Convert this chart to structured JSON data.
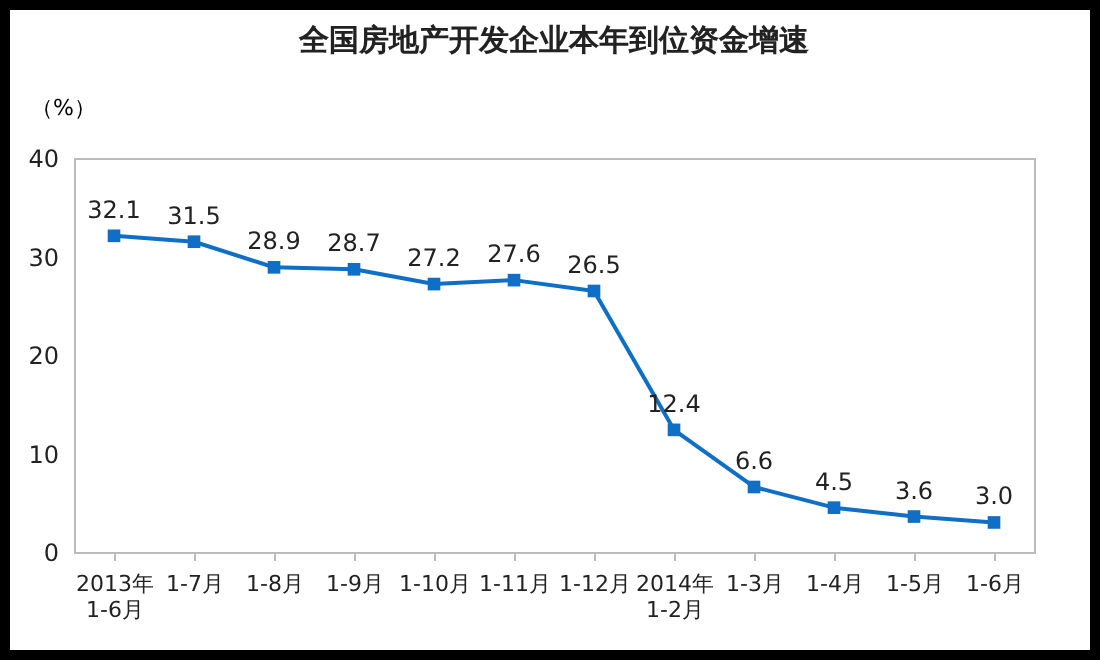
{
  "chart_data": {
    "type": "line",
    "title": "全国房地产开发企业本年到位资金增速",
    "ylabel": "（%）",
    "categories": [
      "2013年\n1-6月",
      "1-7月",
      "1-8月",
      "1-9月",
      "1-10月",
      "1-11月",
      "1-12月",
      "2014年\n1-2月",
      "1-3月",
      "1-4月",
      "1-5月",
      "1-6月"
    ],
    "series": [
      {
        "color": "#0f6fc6",
        "values": [
          32.1,
          31.5,
          28.9,
          28.7,
          27.2,
          27.6,
          26.5,
          12.4,
          6.6,
          4.5,
          3.6,
          3.0
        ]
      }
    ],
    "value_labels": [
      "32.1",
      "31.5",
      "28.9",
      "28.7",
      "27.2",
      "27.6",
      "26.5",
      "12.4",
      "6.6",
      "4.5",
      "3.6",
      "3.0"
    ],
    "ylim": [
      0,
      40
    ],
    "yticks": [
      0,
      10,
      20,
      30,
      40
    ],
    "marker": "square",
    "line_style": "solid",
    "grid": false
  }
}
